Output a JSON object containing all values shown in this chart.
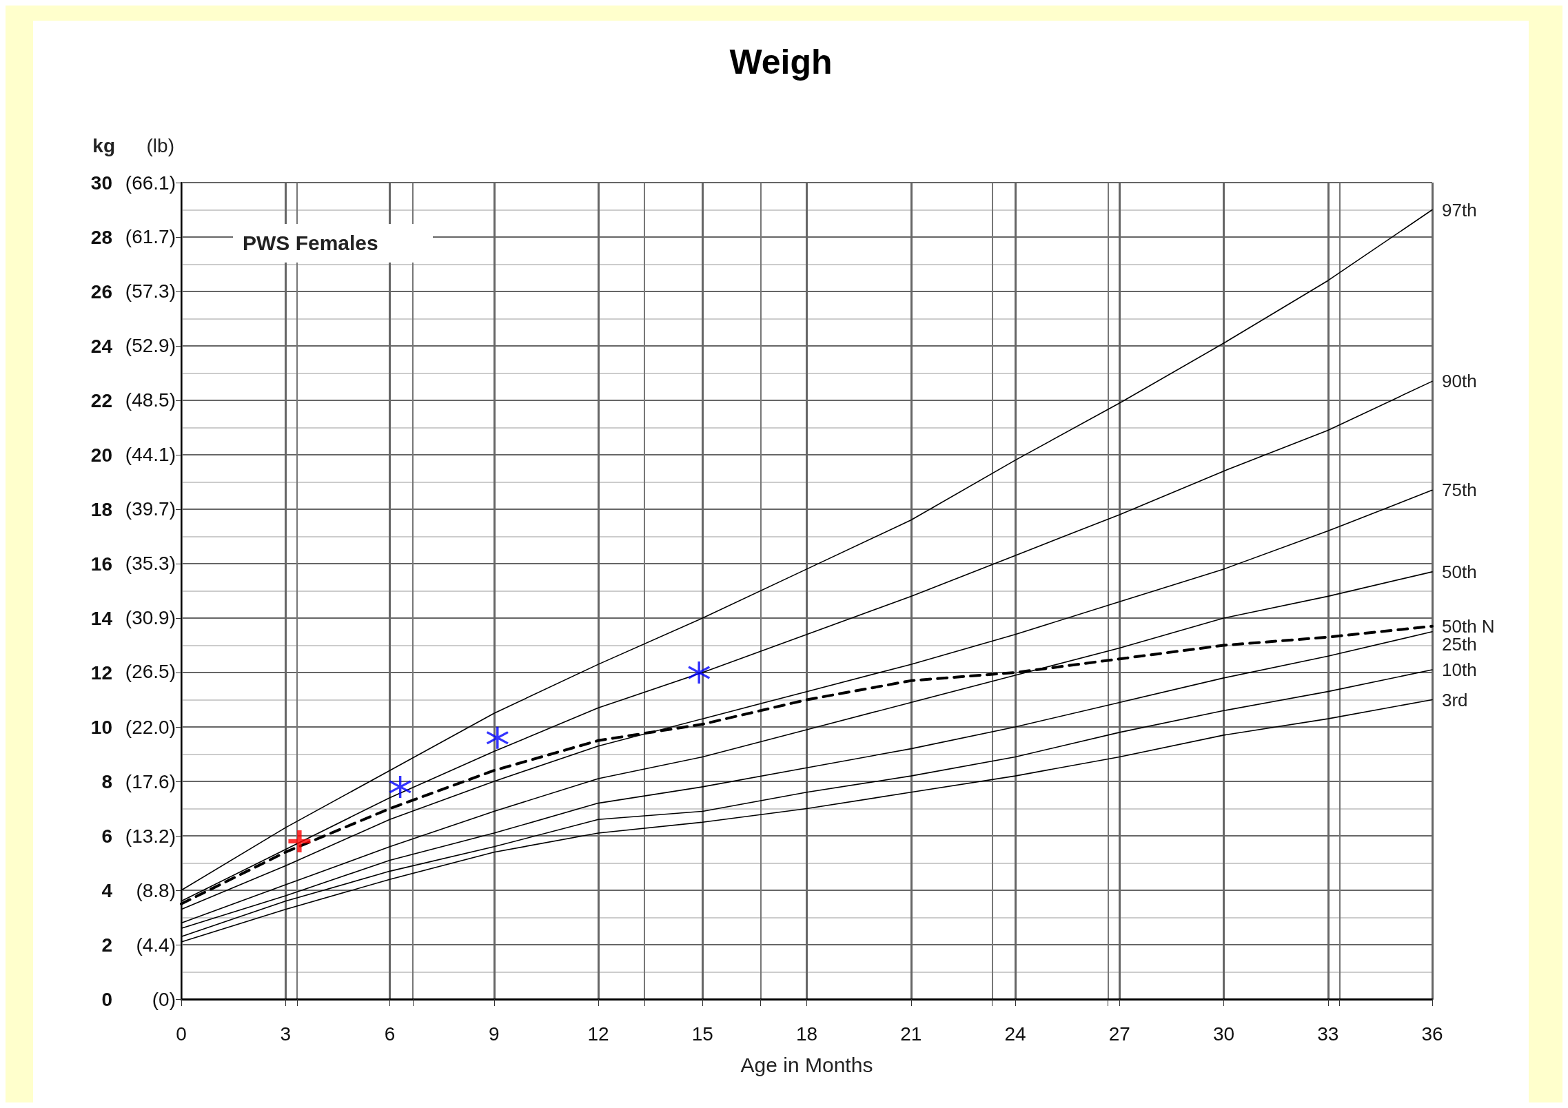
{
  "chart_data": {
    "type": "line",
    "title": "Weigh",
    "xlabel": "Age in Months",
    "ylabel": "kg",
    "y2label": "(lb)",
    "annotations": [
      "PWS Females"
    ],
    "x": [
      0,
      3,
      6,
      9,
      12,
      15,
      18,
      21,
      24,
      27,
      30,
      33,
      36
    ],
    "series": [
      {
        "name": "97th",
        "color": "#000000",
        "values": [
          4.0,
          6.3,
          8.4,
          10.5,
          12.3,
          14.0,
          15.8,
          17.6,
          19.8,
          21.9,
          24.1,
          26.4,
          29.0
        ]
      },
      {
        "name": "90th",
        "color": "#000000",
        "values": [
          3.6,
          5.5,
          7.4,
          9.1,
          10.7,
          12.0,
          13.4,
          14.8,
          16.3,
          17.8,
          19.4,
          20.9,
          22.7
        ]
      },
      {
        "name": "75th",
        "color": "#000000",
        "values": [
          3.3,
          4.9,
          6.6,
          8.0,
          9.3,
          10.3,
          11.3,
          12.3,
          13.4,
          14.6,
          15.8,
          17.2,
          18.7
        ]
      },
      {
        "name": "50th",
        "color": "#000000",
        "values": [
          2.8,
          4.2,
          5.6,
          6.9,
          8.1,
          8.9,
          9.9,
          10.9,
          11.9,
          12.9,
          14.0,
          14.8,
          15.7
        ]
      },
      {
        "name": "50th N",
        "color": "#000000",
        "line_style": "dashed",
        "values": [
          3.5,
          5.4,
          7.0,
          8.4,
          9.5,
          10.1,
          11.0,
          11.7,
          12.0,
          12.5,
          13.0,
          13.3,
          13.7
        ]
      },
      {
        "name": "25th",
        "color": "#000000",
        "values": [
          2.6,
          3.8,
          5.1,
          6.1,
          7.2,
          7.8,
          8.5,
          9.2,
          10.0,
          10.9,
          11.8,
          12.6,
          13.5
        ]
      },
      {
        "name": "10th",
        "color": "#000000",
        "values": [
          2.3,
          3.6,
          4.7,
          5.6,
          6.6,
          6.9,
          7.6,
          8.2,
          8.9,
          9.8,
          10.6,
          11.3,
          12.1
        ]
      },
      {
        "name": "3rd",
        "color": "#000000",
        "values": [
          2.1,
          3.3,
          4.4,
          5.4,
          6.1,
          6.5,
          7.0,
          7.6,
          8.2,
          8.9,
          9.7,
          10.3,
          11.0
        ]
      },
      {
        "type": "scatter",
        "marker": "cross",
        "color": "#ff0000",
        "x": [
          3.4
        ],
        "values": [
          5.8
        ]
      },
      {
        "type": "scatter",
        "marker": "star",
        "color": "#0000ff",
        "x": [
          6.3,
          9.1,
          14.9
        ],
        "values": [
          7.8,
          9.6,
          12.0
        ]
      }
    ],
    "xlim": [
      0,
      36
    ],
    "xticks": [
      0,
      3,
      6,
      9,
      12,
      15,
      18,
      21,
      24,
      27,
      30,
      33,
      36
    ],
    "ylim": [
      0,
      30
    ],
    "yticks": [
      0,
      2,
      4,
      6,
      8,
      10,
      12,
      14,
      16,
      18,
      20,
      22,
      24,
      26,
      28,
      30
    ],
    "y2lim": [
      0,
      66.1
    ],
    "y2ticks": [
      {
        "value": 0,
        "label": "(0)"
      },
      {
        "value": 4.4,
        "label": "(4.4)"
      },
      {
        "value": 8.8,
        "label": "(8.8)"
      },
      {
        "value": 13.2,
        "label": "(13.2)"
      },
      {
        "value": 17.6,
        "label": "(17.6)"
      },
      {
        "value": 22.0,
        "label": "(22.0)"
      },
      {
        "value": 26.5,
        "label": "(26.5)"
      },
      {
        "value": 30.9,
        "label": "(30.9)"
      },
      {
        "value": 35.3,
        "label": "(35.3)"
      },
      {
        "value": 39.7,
        "label": "(39.7)"
      },
      {
        "value": 44.1,
        "label": "(44.1)"
      },
      {
        "value": 48.5,
        "label": "(48.5)"
      },
      {
        "value": 52.9,
        "label": "(52.9)"
      },
      {
        "value": 57.3,
        "label": "(57.3)"
      },
      {
        "value": 61.7,
        "label": "(61.7)"
      },
      {
        "value": 66.1,
        "label": "(66.1)"
      }
    ],
    "grid": true,
    "legend": false,
    "marker": "none",
    "line_style": "solid"
  }
}
